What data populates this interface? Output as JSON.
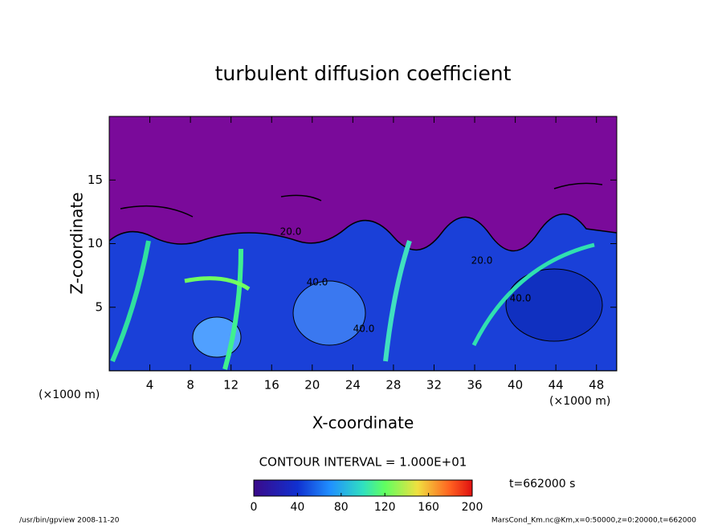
{
  "chart_data": {
    "type": "contour",
    "title": "turbulent diffusion coefficient",
    "xlabel": "X-coordinate",
    "ylabel": "Z-coordinate",
    "xunit": "(×1000 m)",
    "xlim": [
      0,
      50
    ],
    "xticks": [
      4,
      8,
      12,
      16,
      20,
      24,
      28,
      32,
      36,
      40,
      44,
      48
    ],
    "ylim": [
      0,
      20
    ],
    "yticks": [
      5,
      10,
      15
    ],
    "contour_interval": "CONTOUR INTERVAL = 1.000E+01",
    "contour_labels": [
      "20.0",
      "40.0",
      "40.0",
      "40.0",
      "20.0"
    ],
    "time_label": "t=662000 s",
    "clim": [
      0,
      200
    ],
    "cticks": [
      0,
      40,
      80,
      120,
      160,
      200
    ],
    "footer_left": "/usr/bin/gpview  2008-11-20",
    "footer_right": "MarsCond_Km.nc@Km,x=0:50000,z=0:20000,t=662000"
  }
}
